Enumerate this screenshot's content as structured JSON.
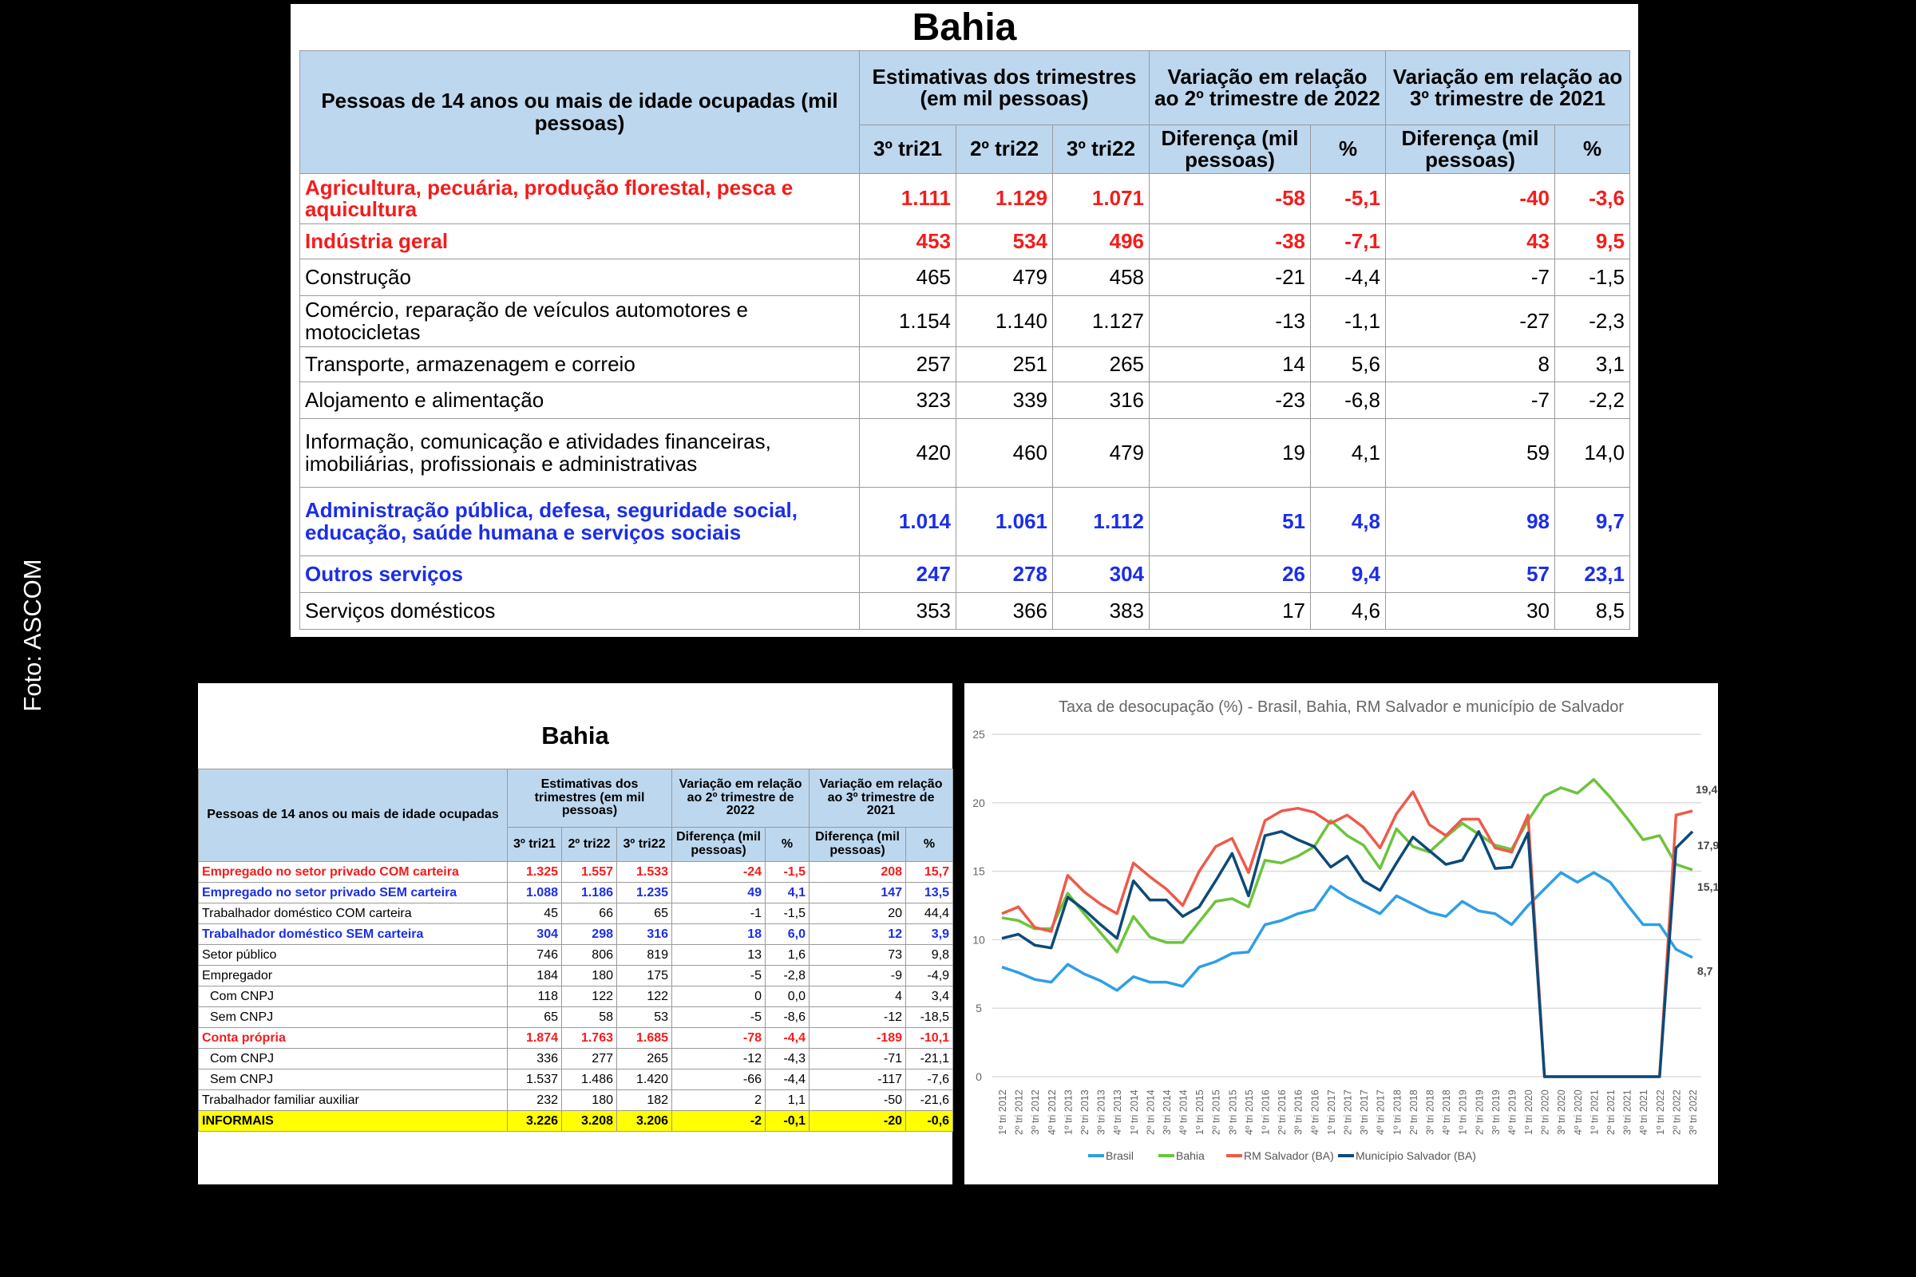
{
  "credit": "Foto: ASCOM",
  "top_table": {
    "title": "Bahia",
    "header": {
      "label": "Pessoas de 14 anos ou mais de idade ocupadas (mil pessoas)",
      "group1": "Estimativas dos trimestres (em mil pessoas)",
      "group2": "Variação em relação ao 2º trimestre de 2022",
      "group3": "Variação em relação ao 3º trimestre de 2021",
      "sub": [
        "3º tri21",
        "2º tri22",
        "3º tri22",
        "Diferença (mil pessoas)",
        "%",
        "Diferença (mil pessoas)",
        "%"
      ]
    },
    "rows": [
      {
        "label": "Agricultura, pecuária, produção florestal, pesca e aquicultura",
        "style": "red",
        "values": [
          "1.111",
          "1.129",
          "1.071",
          "-58",
          "-5,1",
          "-40",
          "-3,6"
        ]
      },
      {
        "label": "Indústria geral",
        "style": "red",
        "values": [
          "453",
          "534",
          "496",
          "-38",
          "-7,1",
          "43",
          "9,5"
        ]
      },
      {
        "label": "Construção",
        "style": "normal",
        "values": [
          "465",
          "479",
          "458",
          "-21",
          "-4,4",
          "-7",
          "-1,5"
        ]
      },
      {
        "label": "Comércio, reparação de veículos automotores e motocicletas",
        "style": "normal",
        "values": [
          "1.154",
          "1.140",
          "1.127",
          "-13",
          "-1,1",
          "-27",
          "-2,3"
        ]
      },
      {
        "label": "Transporte, armazenagem e correio",
        "style": "normal",
        "values": [
          "257",
          "251",
          "265",
          "14",
          "5,6",
          "8",
          "3,1"
        ]
      },
      {
        "label": "Alojamento e alimentação",
        "style": "normal",
        "values": [
          "323",
          "339",
          "316",
          "-23",
          "-6,8",
          "-7",
          "-2,2"
        ]
      },
      {
        "label": "Informação, comunicação e atividades financeiras, imobiliárias, profissionais e administrativas",
        "style": "normal",
        "values": [
          "420",
          "460",
          "479",
          "19",
          "4,1",
          "59",
          "14,0"
        ]
      },
      {
        "label": "Administração pública, defesa, seguridade social, educação, saúde humana e serviços sociais",
        "style": "blue",
        "values": [
          "1.014",
          "1.061",
          "1.112",
          "51",
          "4,8",
          "98",
          "9,7"
        ]
      },
      {
        "label": "Outros serviços",
        "style": "blue",
        "values": [
          "247",
          "278",
          "304",
          "26",
          "9,4",
          "57",
          "23,1"
        ]
      },
      {
        "label": "Serviços domésticos",
        "style": "normal",
        "values": [
          "353",
          "366",
          "383",
          "17",
          "4,6",
          "30",
          "8,5"
        ]
      }
    ]
  },
  "bottom_table": {
    "title": "Bahia",
    "header": {
      "label": "Pessoas de 14 anos ou mais de idade ocupadas",
      "group1": "Estimativas dos trimestres (em mil pessoas)",
      "group2": "Variação em relação ao 2º trimestre de 2022",
      "group3": "Variação em relação ao 3º trimestre de 2021",
      "sub": [
        "3º tri21",
        "2º tri22",
        "3º tri22",
        "Diferença (mil pessoas)",
        "%",
        "Diferença (mil pessoas)",
        "%"
      ]
    },
    "rows": [
      {
        "label": "Empregado no setor privado COM carteira",
        "style": "red",
        "indent": false,
        "values": [
          "1.325",
          "1.557",
          "1.533",
          "-24",
          "-1,5",
          "208",
          "15,7"
        ]
      },
      {
        "label": "Empregado no setor privado SEM carteira",
        "style": "blue",
        "indent": false,
        "values": [
          "1.088",
          "1.186",
          "1.235",
          "49",
          "4,1",
          "147",
          "13,5"
        ]
      },
      {
        "label": "Trabalhador doméstico COM carteira",
        "style": "normal",
        "indent": false,
        "values": [
          "45",
          "66",
          "65",
          "-1",
          "-1,5",
          "20",
          "44,4"
        ]
      },
      {
        "label": "Trabalhador doméstico SEM carteira",
        "style": "blue",
        "indent": false,
        "values": [
          "304",
          "298",
          "316",
          "18",
          "6,0",
          "12",
          "3,9"
        ]
      },
      {
        "label": "Setor público",
        "style": "normal",
        "indent": false,
        "values": [
          "746",
          "806",
          "819",
          "13",
          "1,6",
          "73",
          "9,8"
        ]
      },
      {
        "label": "Empregador",
        "style": "normal",
        "indent": false,
        "values": [
          "184",
          "180",
          "175",
          "-5",
          "-2,8",
          "-9",
          "-4,9"
        ]
      },
      {
        "label": "Com CNPJ",
        "style": "normal",
        "indent": true,
        "values": [
          "118",
          "122",
          "122",
          "0",
          "0,0",
          "4",
          "3,4"
        ]
      },
      {
        "label": "Sem CNPJ",
        "style": "normal",
        "indent": true,
        "values": [
          "65",
          "58",
          "53",
          "-5",
          "-8,6",
          "-12",
          "-18,5"
        ]
      },
      {
        "label": "Conta própria",
        "style": "red",
        "indent": false,
        "values": [
          "1.874",
          "1.763",
          "1.685",
          "-78",
          "-4,4",
          "-189",
          "-10,1"
        ]
      },
      {
        "label": "Com CNPJ",
        "style": "normal",
        "indent": true,
        "values": [
          "336",
          "277",
          "265",
          "-12",
          "-4,3",
          "-71",
          "-21,1"
        ]
      },
      {
        "label": "Sem CNPJ",
        "style": "normal",
        "indent": true,
        "values": [
          "1.537",
          "1.486",
          "1.420",
          "-66",
          "-4,4",
          "-117",
          "-7,6"
        ]
      },
      {
        "label": "Trabalhador familiar auxiliar",
        "style": "normal",
        "indent": false,
        "values": [
          "232",
          "180",
          "182",
          "2",
          "1,1",
          "-50",
          "-21,6"
        ]
      },
      {
        "label": "INFORMAIS",
        "style": "yellow",
        "indent": false,
        "values": [
          "3.226",
          "3.208",
          "3.206",
          "-2",
          "-0,1",
          "-20",
          "-0,6"
        ]
      }
    ]
  },
  "colors": {
    "header_bg": "#bdd7ee",
    "red": "#f51c1c",
    "blue": "#1b2ee8",
    "highlight": "#ffff00"
  },
  "chart_data": {
    "type": "line",
    "title": "Taxa de desocupação (%) - Brasil, Bahia, RM Salvador e município de Salvador",
    "xlabel": "",
    "ylabel": "",
    "ylim": [
      0,
      25
    ],
    "yticks": [
      "0",
      "5",
      "10",
      "15",
      "20",
      "25"
    ],
    "grid": true,
    "legend": "bottom",
    "x": [
      "1º tri 2012",
      "2º tri 2012",
      "3º tri 2012",
      "4º tri 2012",
      "1º tri 2013",
      "2º tri 2013",
      "3º tri 2013",
      "4º tri 2013",
      "1º tri 2014",
      "2º tri 2014",
      "3º tri 2014",
      "4º tri 2014",
      "1º tri 2015",
      "2º tri 2015",
      "3º tri 2015",
      "4º tri 2015",
      "1º tri 2016",
      "2º tri 2016",
      "3º tri 2016",
      "4º tri 2016",
      "1º tri 2017",
      "2º tri 2017",
      "3º tri 2017",
      "4º tri 2017",
      "1º tri 2018",
      "2º tri 2018",
      "3º tri 2018",
      "4º tri 2018",
      "1º tri 2019",
      "2º tri 2019",
      "3º tri 2019",
      "4º tri 2019",
      "1º tri 2020",
      "2º tri 2020",
      "3º tri 2020",
      "4º tri 2020",
      "1º tri 2021",
      "2º tri 2021",
      "3º tri 2021",
      "4º tri 2021",
      "1º tri 2022",
      "2º tri 2022",
      "3º tri 2022"
    ],
    "series": [
      {
        "name": "Brasil",
        "color": "#2e9fe6",
        "end_label": "8,7",
        "values": [
          8.0,
          7.6,
          7.1,
          6.9,
          8.2,
          7.5,
          7.0,
          6.3,
          7.3,
          6.9,
          6.9,
          6.6,
          8.0,
          8.4,
          9.0,
          9.1,
          11.1,
          11.4,
          11.9,
          12.2,
          13.9,
          13.1,
          12.5,
          11.9,
          13.2,
          12.6,
          12.0,
          11.7,
          12.8,
          12.1,
          11.9,
          11.1,
          12.5,
          13.7,
          14.9,
          14.2,
          14.9,
          14.2,
          12.6,
          11.1,
          11.1,
          9.3,
          8.7
        ]
      },
      {
        "name": "Bahia",
        "color": "#6cc43c",
        "end_label": "15,1",
        "values": [
          11.6,
          11.4,
          10.8,
          10.8,
          13.4,
          11.9,
          10.5,
          9.1,
          11.7,
          10.2,
          9.8,
          9.8,
          11.3,
          12.8,
          13.0,
          12.4,
          15.8,
          15.6,
          16.1,
          16.8,
          18.7,
          17.6,
          16.9,
          15.2,
          18.1,
          16.8,
          16.4,
          17.5,
          18.5,
          17.7,
          16.9,
          16.6,
          18.7,
          20.5,
          21.1,
          20.7,
          21.7,
          20.4,
          18.9,
          17.3,
          17.6,
          15.5,
          15.1
        ]
      },
      {
        "name": "RM Salvador (BA)",
        "color": "#ee5a4a",
        "end_label": "19,4",
        "values": [
          11.9,
          12.4,
          10.9,
          10.6,
          14.7,
          13.5,
          12.6,
          11.9,
          15.6,
          14.6,
          13.7,
          12.5,
          15.0,
          16.8,
          17.4,
          14.9,
          18.7,
          19.4,
          19.6,
          19.3,
          18.5,
          19.1,
          18.2,
          16.7,
          19.2,
          20.8,
          18.4,
          17.6,
          18.8,
          18.8,
          16.7,
          16.4,
          19.1,
          0,
          0,
          0,
          0,
          0,
          0,
          0,
          0,
          19.1,
          19.4
        ]
      },
      {
        "name": "Município Salvador (BA)",
        "color": "#0d4a78",
        "end_label": "17,9",
        "values": [
          10.1,
          10.4,
          9.6,
          9.4,
          13.1,
          12.2,
          11.1,
          10.1,
          14.3,
          12.9,
          12.9,
          11.7,
          12.4,
          14.3,
          16.3,
          13.2,
          17.6,
          17.9,
          17.3,
          16.8,
          15.3,
          16.1,
          14.3,
          13.6,
          15.6,
          17.5,
          16.5,
          15.5,
          15.8,
          17.9,
          15.2,
          15.3,
          17.8,
          0,
          0,
          0,
          0,
          0,
          0,
          0,
          0,
          16.7,
          17.9
        ]
      }
    ]
  }
}
